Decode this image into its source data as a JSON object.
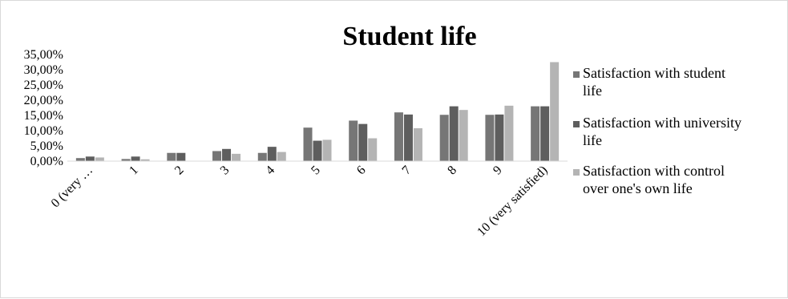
{
  "chart_data": {
    "type": "bar",
    "title": "Student life",
    "xlabel": "",
    "ylabel": "",
    "categories": [
      "0 (very …",
      "1",
      "2",
      "3",
      "4",
      "5",
      "6",
      "7",
      "8",
      "9",
      "10 (very satisfied)"
    ],
    "y_ticks": [
      "0,00%",
      "5,00%",
      "10,00%",
      "15,00%",
      "20,00%",
      "25,00%",
      "30,00%",
      "35,00%"
    ],
    "ylim": [
      0,
      35
    ],
    "grid": false,
    "legend_position": "right",
    "series": [
      {
        "name": "Satisfaction with student life",
        "name_lines": [
          "Satisfaction with student",
          "life"
        ],
        "color": "#767676",
        "values": [
          1.0,
          0.7,
          2.7,
          3.3,
          2.7,
          11.0,
          13.3,
          16.0,
          15.2,
          15.2,
          18.0
        ]
      },
      {
        "name": "Satisfaction with university life",
        "name_lines": [
          "Satisfaction with university",
          "life"
        ],
        "color": "#5e5e5e",
        "values": [
          1.5,
          1.5,
          2.7,
          4.0,
          4.7,
          6.7,
          12.2,
          15.3,
          18.0,
          15.3,
          18.0
        ]
      },
      {
        "name": "Satisfaction with control over one's own life",
        "name_lines": [
          "Satisfaction with control",
          "over one's own life"
        ],
        "color": "#b4b4b4",
        "values": [
          1.2,
          0.6,
          0.0,
          2.4,
          3.0,
          7.0,
          7.5,
          10.8,
          16.8,
          18.2,
          32.5
        ]
      }
    ]
  }
}
